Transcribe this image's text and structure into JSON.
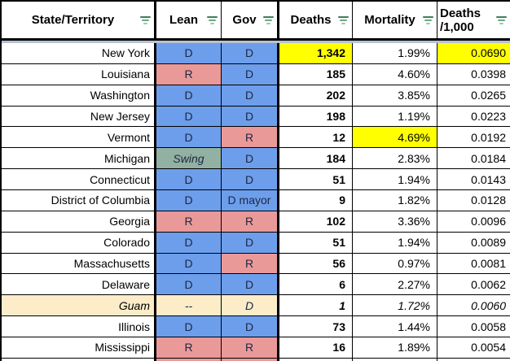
{
  "colors": {
    "white": "#ffffff",
    "blue": "#6d9eeb",
    "red": "#ea9999",
    "swing": "#92b1a2",
    "tan": "#fcecc8",
    "yellow": "#ffff00",
    "gridline": "#000000",
    "frozen_divider": "#b7c1d1",
    "filter_icon_green": "#3f7f5c"
  },
  "header": {
    "columns": [
      {
        "key": "state",
        "label": "State/Territory"
      },
      {
        "key": "lean",
        "label": "Lean"
      },
      {
        "key": "gov",
        "label": "Gov"
      },
      {
        "key": "deaths",
        "label": "Deaths"
      },
      {
        "key": "mortality",
        "label": "Mortality"
      },
      {
        "key": "per1000",
        "label": "Deaths\n/1,000"
      }
    ],
    "filter_icon": "filter-icon"
  },
  "rows": [
    {
      "state": "New York",
      "state_bg": "white",
      "lean": "D",
      "lean_bg": "blue",
      "lean_italic": false,
      "gov": "D",
      "gov_bg": "blue",
      "deaths": "1,342",
      "deaths_bg": "yellow",
      "mortality": "1.99%",
      "mortality_bg": "white",
      "per_1000": "0.0690",
      "per_1000_bg": "yellow",
      "italic": false
    },
    {
      "state": "Louisiana",
      "state_bg": "white",
      "lean": "R",
      "lean_bg": "red",
      "lean_italic": false,
      "gov": "D",
      "gov_bg": "blue",
      "deaths": "185",
      "deaths_bg": "white",
      "mortality": "4.60%",
      "mortality_bg": "white",
      "per_1000": "0.0398",
      "per_1000_bg": "white",
      "italic": false
    },
    {
      "state": "Washington",
      "state_bg": "white",
      "lean": "D",
      "lean_bg": "blue",
      "lean_italic": false,
      "gov": "D",
      "gov_bg": "blue",
      "deaths": "202",
      "deaths_bg": "white",
      "mortality": "3.85%",
      "mortality_bg": "white",
      "per_1000": "0.0265",
      "per_1000_bg": "white",
      "italic": false
    },
    {
      "state": "New Jersey",
      "state_bg": "white",
      "lean": "D",
      "lean_bg": "blue",
      "lean_italic": false,
      "gov": "D",
      "gov_bg": "blue",
      "deaths": "198",
      "deaths_bg": "white",
      "mortality": "1.19%",
      "mortality_bg": "white",
      "per_1000": "0.0223",
      "per_1000_bg": "white",
      "italic": false
    },
    {
      "state": "Vermont",
      "state_bg": "white",
      "lean": "D",
      "lean_bg": "blue",
      "lean_italic": false,
      "gov": "R",
      "gov_bg": "red",
      "deaths": "12",
      "deaths_bg": "white",
      "mortality": "4.69%",
      "mortality_bg": "yellow",
      "per_1000": "0.0192",
      "per_1000_bg": "white",
      "italic": false
    },
    {
      "state": "Michigan",
      "state_bg": "white",
      "lean": "Swing",
      "lean_bg": "swing",
      "lean_italic": true,
      "gov": "D",
      "gov_bg": "blue",
      "deaths": "184",
      "deaths_bg": "white",
      "mortality": "2.83%",
      "mortality_bg": "white",
      "per_1000": "0.0184",
      "per_1000_bg": "white",
      "italic": false
    },
    {
      "state": "Connecticut",
      "state_bg": "white",
      "lean": "D",
      "lean_bg": "blue",
      "lean_italic": false,
      "gov": "D",
      "gov_bg": "blue",
      "deaths": "51",
      "deaths_bg": "white",
      "mortality": "1.94%",
      "mortality_bg": "white",
      "per_1000": "0.0143",
      "per_1000_bg": "white",
      "italic": false
    },
    {
      "state": "District of Columbia",
      "state_bg": "white",
      "lean": "D",
      "lean_bg": "blue",
      "lean_italic": false,
      "gov": "D mayor",
      "gov_bg": "blue",
      "deaths": "9",
      "deaths_bg": "white",
      "mortality": "1.82%",
      "mortality_bg": "white",
      "per_1000": "0.0128",
      "per_1000_bg": "white",
      "italic": false
    },
    {
      "state": "Georgia",
      "state_bg": "white",
      "lean": "R",
      "lean_bg": "red",
      "lean_italic": false,
      "gov": "R",
      "gov_bg": "red",
      "deaths": "102",
      "deaths_bg": "white",
      "mortality": "3.36%",
      "mortality_bg": "white",
      "per_1000": "0.0096",
      "per_1000_bg": "white",
      "italic": false
    },
    {
      "state": "Colorado",
      "state_bg": "white",
      "lean": "D",
      "lean_bg": "blue",
      "lean_italic": false,
      "gov": "D",
      "gov_bg": "blue",
      "deaths": "51",
      "deaths_bg": "white",
      "mortality": "1.94%",
      "mortality_bg": "white",
      "per_1000": "0.0089",
      "per_1000_bg": "white",
      "italic": false
    },
    {
      "state": "Massachusetts",
      "state_bg": "white",
      "lean": "D",
      "lean_bg": "blue",
      "lean_italic": false,
      "gov": "R",
      "gov_bg": "red",
      "deaths": "56",
      "deaths_bg": "white",
      "mortality": "0.97%",
      "mortality_bg": "white",
      "per_1000": "0.0081",
      "per_1000_bg": "white",
      "italic": false
    },
    {
      "state": "Delaware",
      "state_bg": "white",
      "lean": "D",
      "lean_bg": "blue",
      "lean_italic": false,
      "gov": "D",
      "gov_bg": "blue",
      "deaths": "6",
      "deaths_bg": "white",
      "mortality": "2.27%",
      "mortality_bg": "white",
      "per_1000": "0.0062",
      "per_1000_bg": "white",
      "italic": false
    },
    {
      "state": "Guam",
      "state_bg": "tan",
      "lean": "--",
      "lean_bg": "tan",
      "lean_italic": true,
      "gov": "D",
      "gov_bg": "tan",
      "deaths": "1",
      "deaths_bg": "white",
      "mortality": "1.72%",
      "mortality_bg": "white",
      "per_1000": "0.0060",
      "per_1000_bg": "white",
      "italic": true
    },
    {
      "state": "Illinois",
      "state_bg": "white",
      "lean": "D",
      "lean_bg": "blue",
      "lean_italic": false,
      "gov": "D",
      "gov_bg": "blue",
      "deaths": "73",
      "deaths_bg": "white",
      "mortality": "1.44%",
      "mortality_bg": "white",
      "per_1000": "0.0058",
      "per_1000_bg": "white",
      "italic": false
    },
    {
      "state": "Mississippi",
      "state_bg": "white",
      "lean": "R",
      "lean_bg": "red",
      "lean_italic": false,
      "gov": "R",
      "gov_bg": "red",
      "deaths": "16",
      "deaths_bg": "white",
      "mortality": "1.89%",
      "mortality_bg": "white",
      "per_1000": "0.0054",
      "per_1000_bg": "white",
      "italic": false
    }
  ],
  "partial_next_row": {
    "cells_bg": [
      "white",
      "red",
      "red",
      "white",
      "white",
      "white"
    ]
  }
}
